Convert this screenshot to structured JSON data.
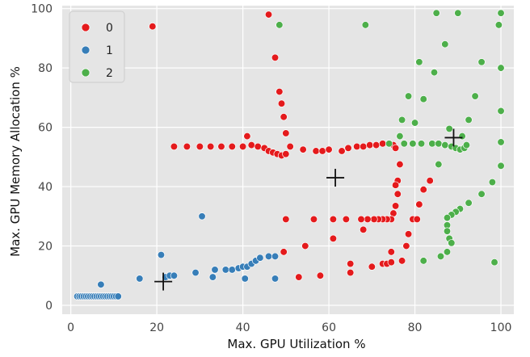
{
  "chart_data": {
    "type": "scatter",
    "xlabel": "Max. GPU Utilization %",
    "ylabel": "Max. GPU Memory Allocation %",
    "xlim": [
      -2,
      103
    ],
    "ylim": [
      -3,
      101
    ],
    "xticks": [
      0,
      20,
      40,
      60,
      80,
      100
    ],
    "yticks": [
      0,
      20,
      40,
      60,
      80,
      100
    ],
    "grid": true,
    "background": "#e5e5e5",
    "legend_position": "top-left",
    "series": [
      {
        "name": "0",
        "color": "#e41a1c",
        "points": [
          [
            19,
            94
          ],
          [
            46,
            98
          ],
          [
            47.5,
            83.5
          ],
          [
            48.5,
            72
          ],
          [
            49,
            68
          ],
          [
            49.5,
            63.5
          ],
          [
            50,
            58
          ],
          [
            24,
            53.5
          ],
          [
            27,
            53.5
          ],
          [
            30,
            53.5
          ],
          [
            32.5,
            53.5
          ],
          [
            35,
            53.5
          ],
          [
            37.5,
            53.5
          ],
          [
            40,
            53.5
          ],
          [
            41,
            57
          ],
          [
            42,
            54
          ],
          [
            43.5,
            53.5
          ],
          [
            45,
            53
          ],
          [
            46,
            52
          ],
          [
            47,
            51.5
          ],
          [
            48,
            51
          ],
          [
            49,
            50.5
          ],
          [
            50,
            51
          ],
          [
            51,
            53.5
          ],
          [
            54,
            52.5
          ],
          [
            57,
            52
          ],
          [
            58.5,
            52
          ],
          [
            60,
            52.5
          ],
          [
            63,
            52
          ],
          [
            64.5,
            53
          ],
          [
            66.5,
            53.5
          ],
          [
            68,
            53.5
          ],
          [
            69.5,
            54
          ],
          [
            71,
            54
          ],
          [
            72.5,
            54.5
          ],
          [
            74,
            54.5
          ],
          [
            75,
            54
          ],
          [
            75.5,
            53
          ],
          [
            76.5,
            47.5
          ],
          [
            76,
            42
          ],
          [
            75.5,
            40.5
          ],
          [
            76,
            37.5
          ],
          [
            75.5,
            33.5
          ],
          [
            75,
            31
          ],
          [
            74.5,
            29
          ],
          [
            73.5,
            29
          ],
          [
            72.5,
            29
          ],
          [
            71.5,
            29
          ],
          [
            70.5,
            29
          ],
          [
            69,
            29
          ],
          [
            67.5,
            29
          ],
          [
            64,
            29
          ],
          [
            61,
            29
          ],
          [
            56.5,
            29
          ],
          [
            50,
            29
          ],
          [
            68,
            25.5
          ],
          [
            61,
            22.5
          ],
          [
            54.5,
            20
          ],
          [
            49.5,
            18
          ],
          [
            74.5,
            18
          ],
          [
            72.5,
            14
          ],
          [
            73.5,
            14
          ],
          [
            74.5,
            14.5
          ],
          [
            70,
            13
          ],
          [
            65,
            14
          ],
          [
            58,
            10
          ],
          [
            53,
            9.5
          ],
          [
            65,
            11
          ],
          [
            77,
            15
          ],
          [
            78,
            20
          ],
          [
            78.5,
            24
          ],
          [
            79.5,
            29
          ],
          [
            80.5,
            29
          ],
          [
            81,
            34
          ],
          [
            82,
            39
          ],
          [
            83.5,
            42
          ]
        ]
      },
      {
        "name": "1",
        "color": "#377eb8",
        "points": [
          [
            1.5,
            3
          ],
          [
            2,
            3
          ],
          [
            2.5,
            3
          ],
          [
            3,
            3
          ],
          [
            3.5,
            3
          ],
          [
            4,
            3
          ],
          [
            4.5,
            3
          ],
          [
            5,
            3
          ],
          [
            5.5,
            3
          ],
          [
            6,
            3
          ],
          [
            6.5,
            3
          ],
          [
            7,
            3
          ],
          [
            7.5,
            3
          ],
          [
            8,
            3
          ],
          [
            8.5,
            3
          ],
          [
            9,
            3
          ],
          [
            9.5,
            3
          ],
          [
            10,
            3
          ],
          [
            10.5,
            3
          ],
          [
            11,
            3
          ],
          [
            7,
            7
          ],
          [
            16,
            9
          ],
          [
            21,
            17
          ],
          [
            22,
            9.5
          ],
          [
            23,
            10
          ],
          [
            24,
            10
          ],
          [
            29,
            11
          ],
          [
            30.5,
            30
          ],
          [
            33,
            9.5
          ],
          [
            33.5,
            12
          ],
          [
            36,
            12
          ],
          [
            37.5,
            12
          ],
          [
            39,
            12.5
          ],
          [
            40,
            13
          ],
          [
            41,
            13
          ],
          [
            42,
            14
          ],
          [
            43,
            15
          ],
          [
            44,
            16
          ],
          [
            46,
            16.5
          ],
          [
            47.5,
            16.5
          ],
          [
            40.5,
            9
          ],
          [
            47.5,
            9
          ]
        ]
      },
      {
        "name": "2",
        "color": "#4daf4a",
        "points": [
          [
            48.5,
            94.5
          ],
          [
            68.5,
            94.5
          ],
          [
            85,
            98.5
          ],
          [
            90,
            98.5
          ],
          [
            100,
            98.5
          ],
          [
            99.5,
            94.5
          ],
          [
            87,
            88
          ],
          [
            95.5,
            82
          ],
          [
            81,
            82
          ],
          [
            100,
            80
          ],
          [
            84.5,
            78.5
          ],
          [
            78.5,
            70.5
          ],
          [
            94,
            70.5
          ],
          [
            82,
            69.5
          ],
          [
            100,
            65.5
          ],
          [
            92.5,
            62.5
          ],
          [
            77,
            62.5
          ],
          [
            80,
            61.5
          ],
          [
            88,
            59.5
          ],
          [
            76.5,
            57
          ],
          [
            91,
            57
          ],
          [
            74,
            54.5
          ],
          [
            77.5,
            54.5
          ],
          [
            79.5,
            54.5
          ],
          [
            81.5,
            54.5
          ],
          [
            84,
            54.5
          ],
          [
            85.5,
            54.5
          ],
          [
            87,
            54
          ],
          [
            88.5,
            53.5
          ],
          [
            89.5,
            53
          ],
          [
            90.5,
            52.5
          ],
          [
            91.5,
            53
          ],
          [
            92,
            54
          ],
          [
            100,
            55
          ],
          [
            85.5,
            47.5
          ],
          [
            100,
            47
          ],
          [
            98,
            41.5
          ],
          [
            95.5,
            37.5
          ],
          [
            92.5,
            34.5
          ],
          [
            90.5,
            32.5
          ],
          [
            89.5,
            31.5
          ],
          [
            88.5,
            30.5
          ],
          [
            87.5,
            29.5
          ],
          [
            87.5,
            27
          ],
          [
            87.5,
            25
          ],
          [
            88,
            22.5
          ],
          [
            88.5,
            21
          ],
          [
            87.5,
            18
          ],
          [
            86,
            16.5
          ],
          [
            82,
            15
          ],
          [
            98.5,
            14.5
          ]
        ]
      }
    ],
    "centroids": [
      [
        21.5,
        8
      ],
      [
        61.5,
        43
      ],
      [
        89,
        56.5
      ]
    ],
    "centroid_color": "#111111"
  }
}
